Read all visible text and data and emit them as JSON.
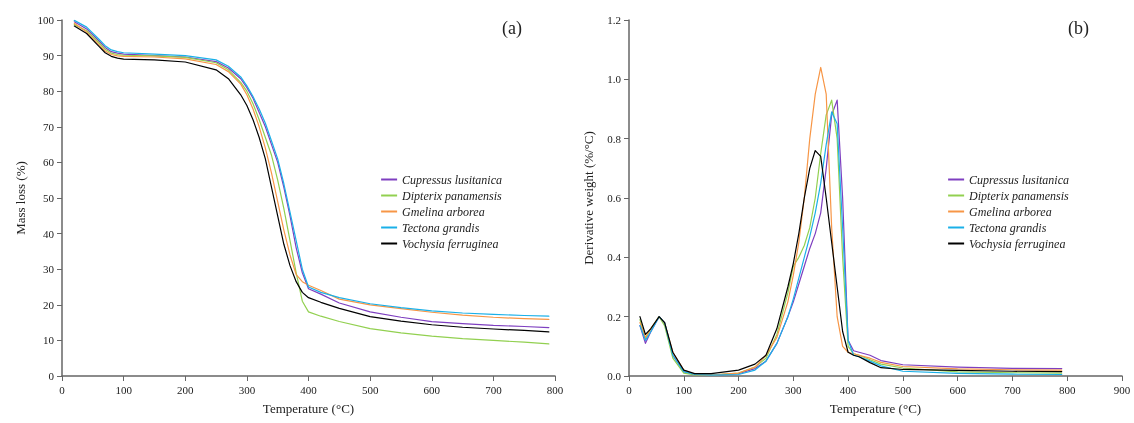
{
  "chart_data": [
    {
      "type": "line",
      "title": "(a)",
      "xlabel": "Temperature (°C)",
      "ylabel": "Mass loss (%)",
      "legend": "right",
      "grid": false,
      "marker": "none",
      "line_style": "solid",
      "x": [
        20,
        40,
        60,
        70,
        80,
        90,
        100,
        150,
        200,
        250,
        270,
        290,
        300,
        310,
        320,
        330,
        340,
        350,
        360,
        370,
        380,
        390,
        400,
        420,
        450,
        500,
        550,
        600,
        650,
        700,
        750,
        790
      ],
      "xlim": [
        0,
        800
      ],
      "xticks": [
        0,
        100,
        200,
        300,
        400,
        500,
        600,
        700,
        800
      ],
      "ylim": [
        0,
        100
      ],
      "yticks": [
        0,
        10,
        20,
        30,
        40,
        50,
        60,
        70,
        80,
        90,
        100
      ],
      "series": [
        {
          "name": "Cupressus lusitanica",
          "color": "#7e3fc0",
          "values": [
            99.5,
            97.5,
            94.1,
            92.3,
            91.1,
            90.7,
            90.4,
            90,
            89.6,
            88.3,
            86.5,
            83.5,
            81,
            78,
            74,
            70,
            65,
            60,
            53,
            45,
            36,
            29,
            24.5,
            23,
            20.5,
            18,
            16.5,
            15.3,
            14.7,
            14.2,
            13.9,
            13.6
          ]
        },
        {
          "name": "Dipterix panamensis",
          "color": "#92d050",
          "values": [
            98.7,
            97,
            93.6,
            91.8,
            90.7,
            90.3,
            90.1,
            89.9,
            89.5,
            88,
            86,
            82.5,
            80,
            76.5,
            72,
            67,
            62,
            55,
            47,
            38,
            29,
            21,
            18,
            16.8,
            15.3,
            13.3,
            12.1,
            11.2,
            10.5,
            10,
            9.5,
            9
          ]
        },
        {
          "name": "Gmelina arborea",
          "color": "#f79646",
          "values": [
            99.1,
            96.6,
            93.1,
            91.3,
            90.3,
            89.9,
            89.8,
            89.6,
            89.1,
            87.5,
            85.5,
            82,
            79,
            75,
            70,
            64,
            57,
            49,
            41,
            34,
            28.5,
            26.5,
            25.5,
            24,
            21.6,
            20,
            18.9,
            17.9,
            17.1,
            16.5,
            16.1,
            15.9
          ]
        },
        {
          "name": "Tectona grandis",
          "color": "#1ab0e8",
          "values": [
            99.9,
            98,
            94.6,
            92.8,
            91.6,
            91.1,
            90.8,
            90.4,
            90,
            88.8,
            87,
            84,
            81.5,
            78.5,
            75,
            71,
            66,
            61,
            54,
            46,
            38,
            30,
            25,
            23.5,
            22,
            20.3,
            19.2,
            18.3,
            17.7,
            17.3,
            17,
            16.8
          ]
        },
        {
          "name": "Vochysia ferruginea",
          "color": "#000000",
          "values": [
            98.3,
            96.2,
            92.6,
            90.8,
            89.8,
            89.3,
            89,
            88.8,
            88.2,
            86,
            83.5,
            79,
            76,
            72,
            67,
            61,
            53,
            45,
            37,
            31,
            26.5,
            23.5,
            22,
            20.7,
            19,
            16.7,
            15.4,
            14.4,
            13.7,
            13.2,
            12.8,
            12.4
          ]
        }
      ]
    },
    {
      "type": "line",
      "title": "(b)",
      "xlabel": "Temperature (°C)",
      "ylabel": "Derivative weight (%/°C)",
      "legend": "right",
      "grid": false,
      "marker": "none",
      "line_style": "solid",
      "x": [
        20,
        30,
        40,
        55,
        65,
        80,
        100,
        120,
        150,
        200,
        230,
        250,
        270,
        290,
        300,
        310,
        320,
        330,
        340,
        350,
        360,
        370,
        380,
        390,
        400,
        410,
        420,
        440,
        460,
        500,
        600,
        700,
        790
      ],
      "xlim": [
        0,
        900
      ],
      "xticks": [
        0,
        100,
        200,
        300,
        400,
        500,
        600,
        700,
        800,
        900
      ],
      "ylim": [
        0,
        1.2
      ],
      "yticks": [
        {
          "value": 0,
          "label": "0.0"
        },
        {
          "value": 0.2,
          "label": "0.2"
        },
        {
          "value": 0.4,
          "label": "0.4"
        },
        {
          "value": 0.6,
          "label": "0.6"
        },
        {
          "value": 0.8,
          "label": "0.8"
        },
        {
          "value": 1,
          "label": "1.0"
        },
        {
          "value": 1.2,
          "label": "1.2"
        }
      ],
      "series": [
        {
          "name": "Cupressus lusitanica",
          "color": "#7e3fc0",
          "values": [
            0.17,
            0.11,
            0.15,
            0.2,
            0.18,
            0.07,
            0.015,
            0.005,
            0.003,
            0.008,
            0.025,
            0.05,
            0.11,
            0.2,
            0.25,
            0.31,
            0.37,
            0.43,
            0.48,
            0.55,
            0.7,
            0.88,
            0.93,
            0.6,
            0.12,
            0.085,
            0.08,
            0.07,
            0.052,
            0.038,
            0.03,
            0.026,
            0.025
          ]
        },
        {
          "name": "Dipterix panamensis",
          "color": "#92d050",
          "values": [
            0.19,
            0.125,
            0.16,
            0.2,
            0.17,
            0.06,
            0.01,
            0.004,
            0.003,
            0.01,
            0.03,
            0.06,
            0.14,
            0.28,
            0.37,
            0.4,
            0.44,
            0.5,
            0.6,
            0.75,
            0.88,
            0.93,
            0.8,
            0.4,
            0.1,
            0.075,
            0.07,
            0.055,
            0.04,
            0.027,
            0.014,
            0.011,
            0.01
          ]
        },
        {
          "name": "Gmelina arborea",
          "color": "#f79646",
          "values": [
            0.18,
            0.13,
            0.16,
            0.2,
            0.18,
            0.08,
            0.02,
            0.005,
            0.003,
            0.01,
            0.03,
            0.07,
            0.13,
            0.25,
            0.34,
            0.45,
            0.6,
            0.8,
            0.95,
            1.04,
            0.95,
            0.5,
            0.2,
            0.1,
            0.08,
            0.075,
            0.07,
            0.06,
            0.046,
            0.032,
            0.024,
            0.021,
            0.02
          ]
        },
        {
          "name": "Tectona grandis",
          "color": "#1ab0e8",
          "values": [
            0.17,
            0.12,
            0.15,
            0.2,
            0.18,
            0.07,
            0.015,
            0.005,
            0.003,
            0.005,
            0.02,
            0.05,
            0.11,
            0.2,
            0.26,
            0.33,
            0.4,
            0.47,
            0.55,
            0.65,
            0.78,
            0.89,
            0.85,
            0.5,
            0.12,
            0.07,
            0.065,
            0.05,
            0.034,
            0.016,
            0.009,
            0.006,
            0.005
          ]
        },
        {
          "name": "Vochysia ferruginea",
          "color": "#000000",
          "values": [
            0.2,
            0.14,
            0.16,
            0.2,
            0.18,
            0.08,
            0.02,
            0.008,
            0.008,
            0.02,
            0.04,
            0.07,
            0.16,
            0.3,
            0.38,
            0.48,
            0.6,
            0.7,
            0.76,
            0.74,
            0.6,
            0.45,
            0.3,
            0.15,
            0.08,
            0.07,
            0.065,
            0.045,
            0.028,
            0.022,
            0.019,
            0.016,
            0.015
          ]
        }
      ]
    }
  ]
}
